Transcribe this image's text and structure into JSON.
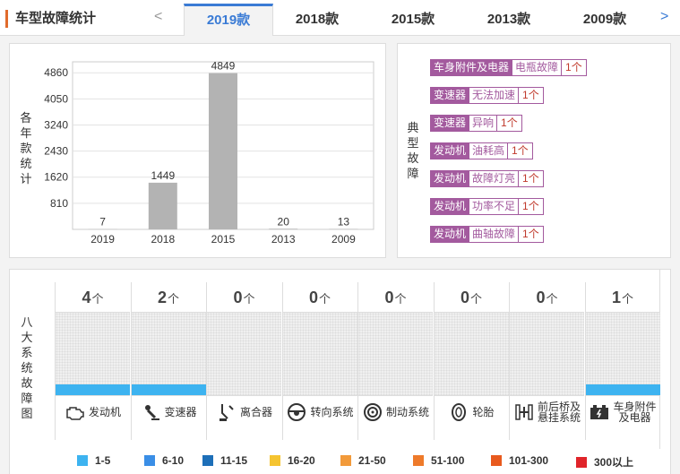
{
  "header": {
    "title": "车型故障统计",
    "prev": "<",
    "next": ">",
    "tabs": [
      {
        "label": "2019款",
        "active": true
      },
      {
        "label": "2018款",
        "active": false
      },
      {
        "label": "2015款",
        "active": false
      },
      {
        "label": "2013款",
        "active": false
      },
      {
        "label": "2009款",
        "active": false
      }
    ]
  },
  "chart_data": {
    "type": "bar",
    "ylabel": "各年款统计",
    "categories": [
      "2019",
      "2018",
      "2015",
      "2013",
      "2009"
    ],
    "values": [
      7,
      1449,
      4849,
      20,
      13
    ],
    "yticks": [
      810,
      1620,
      2430,
      3240,
      4050,
      4860
    ],
    "ylim": [
      0,
      5200
    ],
    "bar_color": "#b3b3b3"
  },
  "typical_faults": {
    "label": "典型故障",
    "items": [
      {
        "system": "车身附件及电器",
        "issue": "电瓶故障",
        "count": "1个"
      },
      {
        "system": "变速器",
        "issue": "无法加速",
        "count": "1个"
      },
      {
        "system": "变速器",
        "issue": "异响",
        "count": "1个"
      },
      {
        "system": "发动机",
        "issue": "油耗高",
        "count": "1个"
      },
      {
        "system": "发动机",
        "issue": "故障灯亮",
        "count": "1个"
      },
      {
        "system": "发动机",
        "issue": "功率不足",
        "count": "1个"
      },
      {
        "system": "发动机",
        "issue": "曲轴故障",
        "count": "1个"
      }
    ]
  },
  "systems": {
    "label": "八大系统故障图",
    "unit": "个",
    "items": [
      {
        "name": "发动机",
        "count": "4",
        "level": 1,
        "icon": "engine-icon"
      },
      {
        "name": "变速器",
        "count": "2",
        "level": 1,
        "icon": "gear-shifter-icon"
      },
      {
        "name": "离合器",
        "count": "0",
        "level": 0,
        "icon": "clutch-icon"
      },
      {
        "name": "转向系统",
        "count": "0",
        "level": 0,
        "icon": "steering-wheel-icon"
      },
      {
        "name": "制动系统",
        "count": "0",
        "level": 0,
        "icon": "brake-disc-icon"
      },
      {
        "name": "轮胎",
        "count": "0",
        "level": 0,
        "icon": "tire-icon"
      },
      {
        "name": "前后桥及悬挂系统",
        "name_l1": "前后桥及",
        "name_l2": "悬挂系统",
        "count": "0",
        "level": 0,
        "icon": "axle-icon"
      },
      {
        "name": "车身附件及电器",
        "name_l1": "车身附件",
        "name_l2": "及电器",
        "count": "1",
        "level": 1,
        "icon": "battery-icon"
      }
    ]
  },
  "legend": [
    {
      "label": "1-5",
      "color": "#3db3f0"
    },
    {
      "label": "6-10",
      "color": "#3a8ee6"
    },
    {
      "label": "11-15",
      "color": "#1d6fb8"
    },
    {
      "label": "16-20",
      "color": "#f5c431"
    },
    {
      "label": "21-50",
      "color": "#f29a3a"
    },
    {
      "label": "51-100",
      "color": "#ee7a2a"
    },
    {
      "label": "101-300",
      "color": "#e85a1e"
    },
    {
      "label": "300以上",
      "color": "#e0242a"
    }
  ]
}
